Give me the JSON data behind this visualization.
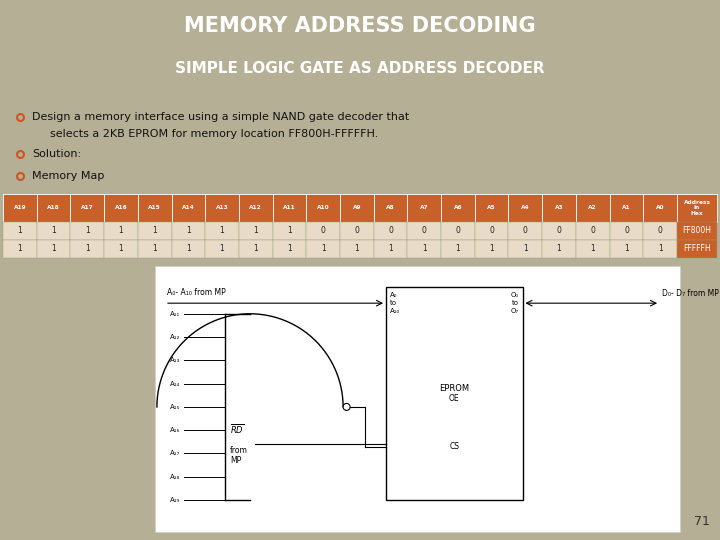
{
  "title_line1": "MEMORY ADDRESS DECODING",
  "title_line2": "SIMPLE LOGIC GATE AS ADDRESS DECODER",
  "title_bg": "#5c5252",
  "title_color": "#ffffff",
  "body_bg": "#b5b095",
  "bullet_color": "#cc5522",
  "bullet_text1a": "Design a memory interface using a simple NAND gate decoder that",
  "bullet_text1b": "selects a 2KB EPROM for memory location FF800H-FFFFFH.",
  "bullet_text2": "Solution:",
  "bullet_text3": "Memory Map",
  "table_header_bg": "#c8602a",
  "table_header_color": "#ffffff",
  "table_data_bg": "#e8dcc8",
  "table_data_color": "#222222",
  "table_last_col_bg": "#c8602a",
  "table_last_col_color": "#ffffff",
  "col_headers": [
    "A19",
    "A18",
    "A17",
    "A16",
    "A15",
    "A14",
    "A13",
    "A12",
    "A11",
    "A10",
    "A9",
    "A8",
    "A7",
    "A6",
    "A5",
    "A4",
    "A3",
    "A2",
    "A1",
    "A0",
    "Address\nin\nHex"
  ],
  "row1_vals": [
    "1",
    "1",
    "1",
    "1",
    "1",
    "1",
    "1",
    "1",
    "1",
    "0",
    "0",
    "0",
    "0",
    "0",
    "0",
    "0",
    "0",
    "0",
    "0",
    "0",
    "FF800H"
  ],
  "row2_vals": [
    "1",
    "1",
    "1",
    "1",
    "1",
    "1",
    "1",
    "1",
    "1",
    "1",
    "1",
    "1",
    "1",
    "1",
    "1",
    "1",
    "1",
    "1",
    "1",
    "1",
    "FFFFFH"
  ],
  "page_num": "71"
}
